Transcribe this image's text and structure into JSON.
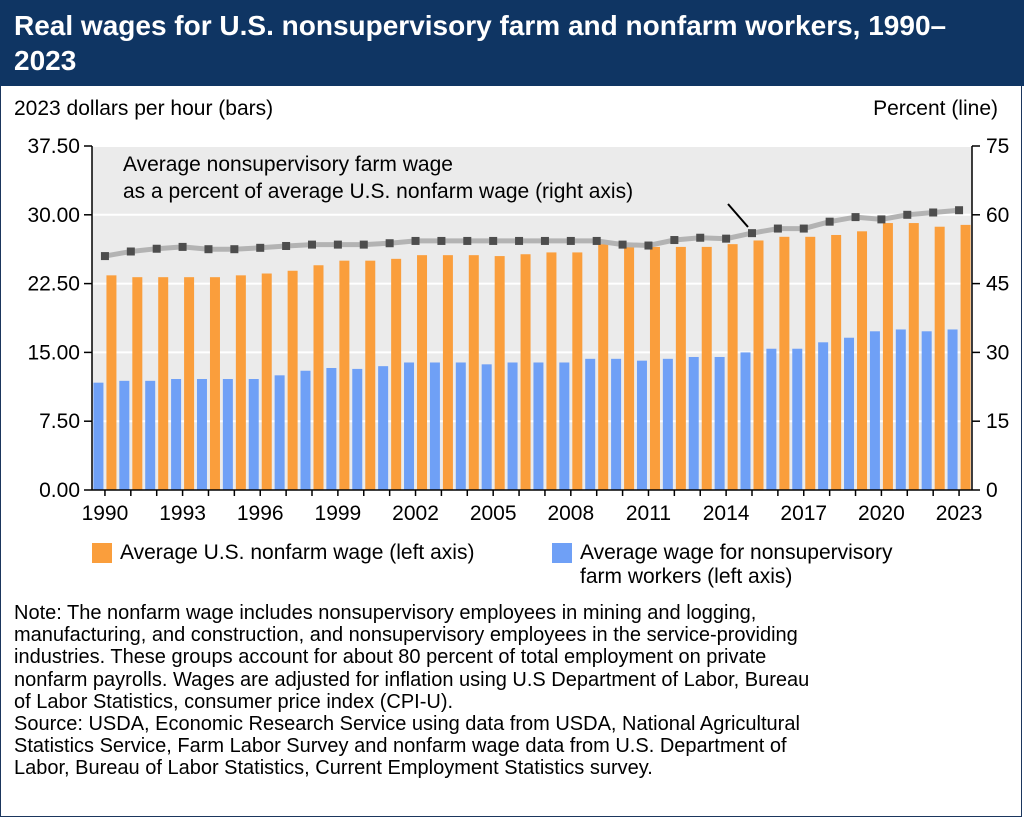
{
  "title": "Real wages for U.S. nonsupervisory farm and nonfarm workers, 1990–2023",
  "colors": {
    "title_bg": "#0f3563",
    "plot_bg": "#ebebeb",
    "nonfarm": "#fa9e3c",
    "farm": "#6fa0f6",
    "line": "#b3b3b3",
    "marker": "#4d4d4d"
  },
  "left_axis_label": "2023 dollars per hour (bars)",
  "right_axis_label": "Percent (line)",
  "annotation_line1": "Average nonsupervisory farm wage",
  "annotation_line2": "as a percent of average U.S. nonfarm wage (right axis)",
  "legend": {
    "nonfarm": "Average U.S. nonfarm wage (left axis)",
    "farm_line1": "Average wage for nonsupervisory",
    "farm_line2": "farm workers (left axis)"
  },
  "note_lines": [
    "Note: The nonfarm wage includes nonsupervisory employees in mining and logging,",
    "manufacturing, and construction, and nonsupervisory employees in the service-providing",
    "industries. These groups account for about 80 percent of total employment on private",
    "nonfarm payrolls. Wages are adjusted for inflation using U.S Department of Labor, Bureau",
    "of Labor Statistics, consumer price index (CPI-U)."
  ],
  "source_lines": [
    "Source: USDA, Economic Research Service using data from USDA, National Agricultural",
    "Statistics Service, Farm Labor Survey and nonfarm wage data from U.S. Department of",
    "Labor, Bureau of Labor Statistics, Current Employment Statistics survey."
  ],
  "chart_data": {
    "type": "bar",
    "x": [
      1990,
      1991,
      1992,
      1993,
      1994,
      1995,
      1996,
      1997,
      1998,
      1999,
      2000,
      2001,
      2002,
      2003,
      2004,
      2005,
      2006,
      2007,
      2008,
      2009,
      2010,
      2011,
      2012,
      2013,
      2014,
      2015,
      2016,
      2017,
      2018,
      2019,
      2020,
      2021,
      2022,
      2023
    ],
    "x_tick_labels": [
      "1990",
      "1993",
      "1996",
      "1999",
      "2002",
      "2005",
      "2008",
      "2011",
      "2014",
      "2017",
      "2020",
      "2023"
    ],
    "left_axis": {
      "ylim": [
        0,
        37.5
      ],
      "ticks": [
        "0.00",
        "7.50",
        "15.00",
        "22.50",
        "30.00",
        "37.50"
      ]
    },
    "right_axis": {
      "ylim": [
        0,
        75
      ],
      "ticks": [
        "0",
        "15",
        "30",
        "45",
        "60",
        "75"
      ]
    },
    "series": [
      {
        "name": "Average U.S. nonfarm wage (left axis)",
        "axis": "left",
        "kind": "bar",
        "values": [
          23.4,
          23.2,
          23.2,
          23.2,
          23.2,
          23.4,
          23.6,
          23.9,
          24.5,
          25.0,
          25.0,
          25.2,
          25.6,
          25.6,
          25.6,
          25.5,
          25.7,
          25.9,
          25.9,
          26.8,
          26.8,
          26.5,
          26.5,
          26.5,
          26.8,
          27.2,
          27.6,
          27.6,
          27.8,
          28.2,
          29.1,
          29.1,
          28.7,
          28.9
        ]
      },
      {
        "name": "Average wage for nonsupervisory farm workers (left axis)",
        "axis": "left",
        "kind": "bar",
        "values": [
          11.7,
          11.9,
          11.9,
          12.1,
          12.1,
          12.1,
          12.1,
          12.5,
          13.0,
          13.3,
          13.2,
          13.5,
          13.9,
          13.9,
          13.9,
          13.7,
          13.9,
          13.9,
          13.9,
          14.3,
          14.3,
          14.1,
          14.3,
          14.5,
          14.5,
          15.0,
          15.4,
          15.4,
          16.1,
          16.6,
          17.3,
          17.5,
          17.3,
          17.5
        ]
      },
      {
        "name": "Average nonsupervisory farm wage as a percent of average U.S. nonfarm wage (right axis)",
        "axis": "right",
        "kind": "line",
        "values": [
          51.0,
          52.0,
          52.6,
          53.0,
          52.5,
          52.5,
          52.8,
          53.2,
          53.5,
          53.5,
          53.5,
          53.8,
          54.3,
          54.3,
          54.3,
          54.3,
          54.3,
          54.3,
          54.3,
          54.3,
          53.5,
          53.3,
          54.5,
          55.0,
          54.8,
          56.0,
          57.0,
          57.0,
          58.5,
          59.5,
          59.0,
          60.0,
          60.5,
          61.0
        ]
      }
    ]
  }
}
